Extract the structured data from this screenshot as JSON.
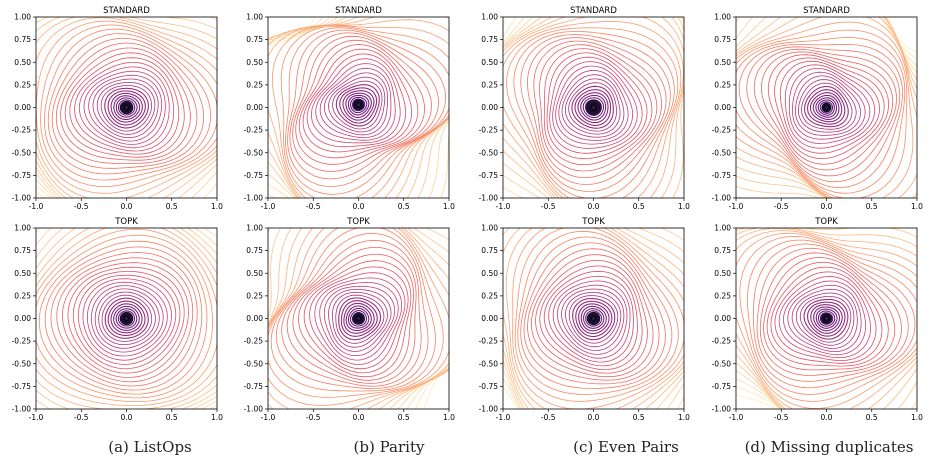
{
  "figure": {
    "captions": [
      "(a) ListOps",
      "(b) Parity",
      "(c) Even Pairs",
      "(d) Missing duplicates"
    ]
  },
  "chart_data": [
    {
      "type": "contour",
      "panel": "(a) ListOps",
      "title": "STANDARD",
      "xlim": [
        -1,
        1
      ],
      "ylim": [
        -1,
        1
      ],
      "xticks": [
        "-1.0",
        "-0.5",
        "0.0",
        "0.5",
        "1.0"
      ],
      "yticks": [
        "-1.00",
        "-0.75",
        "-0.50",
        "-0.25",
        "0.00",
        "0.25",
        "0.50",
        "0.75",
        "1.00"
      ],
      "minimum": [
        0.0,
        0.0
      ],
      "colormap": "magma",
      "basin_radius": 0.3,
      "distortion": 0.18
    },
    {
      "type": "contour",
      "panel": "(b) Parity",
      "title": "STANDARD",
      "xlim": [
        -1,
        1
      ],
      "ylim": [
        -1,
        1
      ],
      "xticks": [
        "-1.0",
        "-0.5",
        "0.0",
        "0.5",
        "1.0"
      ],
      "yticks": [
        "-1.00",
        "-0.75",
        "-0.50",
        "-0.25",
        "0.00",
        "0.25",
        "0.50",
        "0.75",
        "1.00"
      ],
      "minimum": [
        0.0,
        0.03
      ],
      "colormap": "magma",
      "basin_radius": 0.25,
      "distortion": 0.35
    },
    {
      "type": "contour",
      "panel": "(c) Even Pairs",
      "title": "STANDARD",
      "xlim": [
        -1,
        1
      ],
      "ylim": [
        -1,
        1
      ],
      "xticks": [
        "-1.0",
        "-0.5",
        "0.0",
        "0.5",
        "1.0"
      ],
      "yticks": [
        "-1.00",
        "-0.75",
        "-0.50",
        "-0.25",
        "0.00",
        "0.25",
        "0.50",
        "0.75",
        "1.00"
      ],
      "minimum": [
        0.0,
        0.0
      ],
      "colormap": "magma",
      "basin_radius": 0.35,
      "distortion": 0.25
    },
    {
      "type": "contour",
      "panel": "(d) Missing duplicates",
      "title": "STANDARD",
      "xlim": [
        -1,
        1
      ],
      "ylim": [
        -1,
        1
      ],
      "xticks": [
        "-1.0",
        "-0.5",
        "0.0",
        "0.5",
        "1.0"
      ],
      "yticks": [
        "-1.00",
        "-0.75",
        "-0.50",
        "-0.25",
        "0.00",
        "0.25",
        "0.50",
        "0.75",
        "1.00"
      ],
      "minimum": [
        0.0,
        0.0
      ],
      "colormap": "magma",
      "basin_radius": 0.22,
      "distortion": 0.3
    },
    {
      "type": "contour",
      "panel": "(a) ListOps",
      "title": "TOPK",
      "xlim": [
        -1,
        1
      ],
      "ylim": [
        -1,
        1
      ],
      "xticks": [
        "-1.0",
        "-0.5",
        "0.0",
        "0.5",
        "1.0"
      ],
      "yticks": [
        "-1.00",
        "-0.75",
        "-0.50",
        "-0.25",
        "0.00",
        "0.25",
        "0.50",
        "0.75",
        "1.00"
      ],
      "minimum": [
        0.0,
        0.0
      ],
      "colormap": "magma",
      "basin_radius": 0.3,
      "distortion": 0.1
    },
    {
      "type": "contour",
      "panel": "(b) Parity",
      "title": "TOPK",
      "xlim": [
        -1,
        1
      ],
      "ylim": [
        -1,
        1
      ],
      "xticks": [
        "-1.0",
        "-0.5",
        "0.0",
        "0.5",
        "1.0"
      ],
      "yticks": [
        "-1.00",
        "-0.75",
        "-0.50",
        "-0.25",
        "0.00",
        "0.25",
        "0.50",
        "0.75",
        "1.00"
      ],
      "minimum": [
        0.0,
        0.0
      ],
      "colormap": "magma",
      "basin_radius": 0.27,
      "distortion": 0.3
    },
    {
      "type": "contour",
      "panel": "(c) Even Pairs",
      "title": "TOPK",
      "xlim": [
        -1,
        1
      ],
      "ylim": [
        -1,
        1
      ],
      "xticks": [
        "-1.0",
        "-0.5",
        "0.0",
        "0.5",
        "1.0"
      ],
      "yticks": [
        "-1.00",
        "-0.75",
        "-0.50",
        "-0.25",
        "0.00",
        "0.25",
        "0.50",
        "0.75",
        "1.00"
      ],
      "minimum": [
        0.0,
        0.0
      ],
      "colormap": "magma",
      "basin_radius": 0.3,
      "distortion": 0.2
    },
    {
      "type": "contour",
      "panel": "(d) Missing duplicates",
      "title": "TOPK",
      "xlim": [
        -1,
        1
      ],
      "ylim": [
        -1,
        1
      ],
      "xticks": [
        "-1.0",
        "-0.5",
        "0.0",
        "0.5",
        "1.0"
      ],
      "yticks": [
        "-1.00",
        "-0.75",
        "-0.50",
        "-0.25",
        "0.00",
        "0.25",
        "0.50",
        "0.75",
        "1.00"
      ],
      "minimum": [
        0.0,
        0.0
      ],
      "colormap": "magma",
      "basin_radius": 0.25,
      "distortion": 0.25
    }
  ]
}
